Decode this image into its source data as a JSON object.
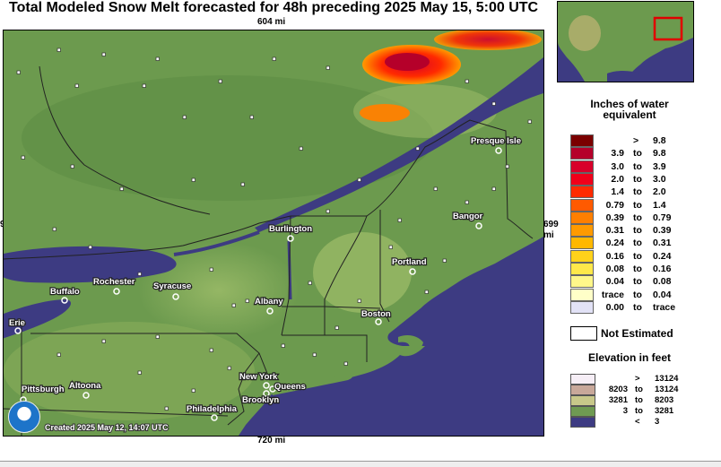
{
  "title": "Total Modeled Snow Melt forecasted for 48h preceding 2025 May 15, 5:00 UTC",
  "distances": {
    "top": "604 mi",
    "bottom": "720 mi",
    "right": "699 mi",
    "left": "9"
  },
  "created": "Created 2025 May 12, 14:07 UTC",
  "cities": [
    {
      "name": "Presque Isle"
    },
    {
      "name": "Bangor"
    },
    {
      "name": "Burlington"
    },
    {
      "name": "Portland"
    },
    {
      "name": "Rochester"
    },
    {
      "name": "Buffalo"
    },
    {
      "name": "Syracuse"
    },
    {
      "name": "Albany"
    },
    {
      "name": "Boston"
    },
    {
      "name": "Erie"
    },
    {
      "name": "New York"
    },
    {
      "name": "Queens"
    },
    {
      "name": "Brooklyn"
    },
    {
      "name": "Pittsburgh"
    },
    {
      "name": "Altoona"
    },
    {
      "name": "Philadelphia"
    }
  ],
  "legend": {
    "title_line1": "Inches of water",
    "title_line2": "equivalent",
    "rows": [
      {
        "lo": "",
        "to": ">",
        "hi": "9.8",
        "color": "#7a0000"
      },
      {
        "lo": "3.9",
        "to": "to",
        "hi": "9.8",
        "color": "#b5002a"
      },
      {
        "lo": "3.0",
        "to": "to",
        "hi": "3.9",
        "color": "#d8002a"
      },
      {
        "lo": "2.0",
        "to": "to",
        "hi": "3.0",
        "color": "#f0001a"
      },
      {
        "lo": "1.4",
        "to": "to",
        "hi": "2.0",
        "color": "#ff2a00"
      },
      {
        "lo": "0.79",
        "to": "to",
        "hi": "1.4",
        "color": "#ff5a00"
      },
      {
        "lo": "0.39",
        "to": "to",
        "hi": "0.79",
        "color": "#ff7f00"
      },
      {
        "lo": "0.31",
        "to": "to",
        "hi": "0.39",
        "color": "#ff9a00"
      },
      {
        "lo": "0.24",
        "to": "to",
        "hi": "0.31",
        "color": "#ffb800"
      },
      {
        "lo": "0.16",
        "to": "to",
        "hi": "0.24",
        "color": "#ffd21a"
      },
      {
        "lo": "0.08",
        "to": "to",
        "hi": "0.16",
        "color": "#ffe84a"
      },
      {
        "lo": "0.04",
        "to": "to",
        "hi": "0.08",
        "color": "#fff78a"
      },
      {
        "lo": "trace",
        "to": "to",
        "hi": "0.04",
        "color": "#ffffc8"
      },
      {
        "lo": "0.00",
        "to": "to",
        "hi": "trace",
        "color": "#e2e2f6"
      }
    ],
    "not_estimated": "Not Estimated"
  },
  "elevation": {
    "title": "Elevation in feet",
    "rows": [
      {
        "lo": "",
        "to": ">",
        "hi": "13124",
        "color": "#f6eef6"
      },
      {
        "lo": "8203",
        "to": "to",
        "hi": "13124",
        "color": "#c8a89a"
      },
      {
        "lo": "3281",
        "to": "to",
        "hi": "8203",
        "color": "#c8c88a"
      },
      {
        "lo": "3",
        "to": "to",
        "hi": "3281",
        "color": "#6f9a52"
      },
      {
        "lo": "",
        "to": "<",
        "hi": "3",
        "color": "#3d3b82"
      }
    ]
  },
  "colors": {
    "land": "#6c9a4e",
    "water": "#3d3b82",
    "border": "#222222"
  }
}
